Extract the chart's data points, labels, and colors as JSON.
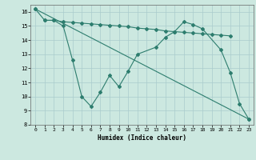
{
  "line1_x": [
    0,
    1,
    2,
    3,
    4,
    5,
    6,
    7,
    8,
    9,
    10,
    11,
    12,
    13,
    14,
    15,
    16,
    17,
    18,
    19,
    20,
    21
  ],
  "line1_y": [
    16.2,
    15.4,
    15.4,
    15.3,
    15.25,
    15.2,
    15.15,
    15.1,
    15.05,
    15.0,
    14.95,
    14.85,
    14.8,
    14.75,
    14.65,
    14.6,
    14.55,
    14.5,
    14.45,
    14.4,
    14.35,
    14.3
  ],
  "line2_x": [
    1,
    2,
    3,
    4,
    5,
    6,
    7,
    8,
    9,
    10,
    11,
    13,
    14,
    15,
    16,
    17,
    18,
    20,
    21,
    22,
    23
  ],
  "line2_y": [
    15.4,
    15.4,
    15.0,
    12.6,
    10.0,
    9.3,
    10.3,
    11.5,
    10.7,
    11.8,
    13.0,
    13.5,
    14.2,
    14.6,
    15.3,
    15.1,
    14.8,
    13.3,
    11.7,
    9.5,
    8.4
  ],
  "line3_x": [
    0,
    23
  ],
  "line3_y": [
    16.2,
    8.4
  ],
  "color": "#2d7d6e",
  "bg_color": "#cce8e0",
  "grid_color": "#aacccc",
  "xlabel": "Humidex (Indice chaleur)",
  "xlim": [
    -0.5,
    23.5
  ],
  "ylim": [
    8,
    16.5
  ],
  "yticks": [
    8,
    9,
    10,
    11,
    12,
    13,
    14,
    15,
    16
  ],
  "xticks": [
    0,
    1,
    2,
    3,
    4,
    5,
    6,
    7,
    8,
    9,
    10,
    11,
    12,
    13,
    14,
    15,
    16,
    17,
    18,
    19,
    20,
    21,
    22,
    23
  ],
  "marker": "D",
  "markersize": 2.0,
  "linewidth": 0.8
}
